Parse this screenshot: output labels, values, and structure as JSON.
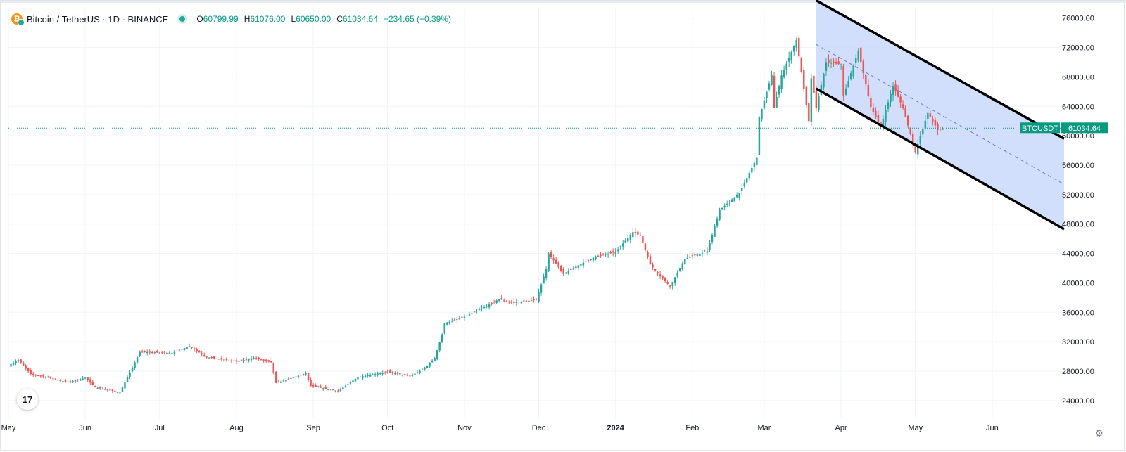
{
  "header": {
    "symbol": "Bitcoin / TetherUS · 1D · BINANCE",
    "open_label": "O",
    "open": "60799.99",
    "high_label": "H",
    "high": "61076.00",
    "low_label": "L",
    "low": "60650.00",
    "close_label": "C",
    "close": "61034.64",
    "change": "+234.65 (+0.39%)"
  },
  "price_tag": {
    "symbol": "BTCUSDT",
    "value": "61034.64"
  },
  "tv_logo_text": "17",
  "colors": {
    "up": "#26a69a",
    "down": "#ef5350",
    "channel_fill": "#c7d7fb",
    "channel_line": "#000000"
  },
  "chart_data": {
    "type": "candlestick",
    "title": "Bitcoin / TetherUS · 1D · BINANCE",
    "y_ticks": [
      24000,
      28000,
      32000,
      36000,
      40000,
      44000,
      48000,
      52000,
      56000,
      60000,
      64000,
      68000,
      72000,
      76000
    ],
    "ylim": [
      21500,
      77500
    ],
    "x_start_date": "2023-05-01",
    "xlim": [
      "2023-05-01",
      "2024-06-30"
    ],
    "x_labels": [
      {
        "date": "2023-05-01",
        "label": "May"
      },
      {
        "date": "2023-06-01",
        "label": "Jun"
      },
      {
        "date": "2023-07-01",
        "label": "Jul"
      },
      {
        "date": "2023-08-01",
        "label": "Aug"
      },
      {
        "date": "2023-09-01",
        "label": "Sep"
      },
      {
        "date": "2023-10-01",
        "label": "Oct"
      },
      {
        "date": "2023-11-01",
        "label": "Nov"
      },
      {
        "date": "2023-12-01",
        "label": "Dec"
      },
      {
        "date": "2024-01-01",
        "label": "2024"
      },
      {
        "date": "2024-02-01",
        "label": "Feb"
      },
      {
        "date": "2024-03-01",
        "label": "Mar"
      },
      {
        "date": "2024-04-01",
        "label": "Apr"
      },
      {
        "date": "2024-05-01",
        "label": "May"
      },
      {
        "date": "2024-06-01",
        "label": "Jun"
      }
    ],
    "close_path": [
      [
        "2023-05-01",
        28800
      ],
      [
        "2023-05-05",
        29500
      ],
      [
        "2023-05-10",
        27600
      ],
      [
        "2023-05-15",
        27300
      ],
      [
        "2023-05-25",
        26500
      ],
      [
        "2023-06-01",
        27100
      ],
      [
        "2023-06-05",
        25800
      ],
      [
        "2023-06-15",
        25100
      ],
      [
        "2023-06-20",
        28500
      ],
      [
        "2023-06-23",
        30600
      ],
      [
        "2023-07-06",
        30500
      ],
      [
        "2023-07-13",
        31400
      ],
      [
        "2023-07-20",
        29900
      ],
      [
        "2023-08-01",
        29300
      ],
      [
        "2023-08-08",
        29800
      ],
      [
        "2023-08-15",
        29200
      ],
      [
        "2023-08-17",
        26400
      ],
      [
        "2023-08-29",
        27700
      ],
      [
        "2023-08-31",
        26000
      ],
      [
        "2023-09-11",
        25300
      ],
      [
        "2023-09-19",
        27200
      ],
      [
        "2023-10-01",
        27900
      ],
      [
        "2023-10-10",
        27300
      ],
      [
        "2023-10-16",
        28400
      ],
      [
        "2023-10-20",
        29800
      ],
      [
        "2023-10-23",
        33000
      ],
      [
        "2023-10-24",
        34500
      ],
      [
        "2023-11-01",
        35400
      ],
      [
        "2023-11-09",
        36700
      ],
      [
        "2023-11-15",
        37800
      ],
      [
        "2023-11-20",
        37300
      ],
      [
        "2023-11-30",
        37700
      ],
      [
        "2023-12-04",
        41900
      ],
      [
        "2023-12-05",
        44000
      ],
      [
        "2023-12-11",
        41200
      ],
      [
        "2023-12-18",
        42600
      ],
      [
        "2023-12-24",
        43600
      ],
      [
        "2024-01-01",
        44200
      ],
      [
        "2024-01-08",
        46900
      ],
      [
        "2024-01-11",
        46400
      ],
      [
        "2024-01-15",
        42500
      ],
      [
        "2024-01-18",
        41300
      ],
      [
        "2024-01-23",
        39500
      ],
      [
        "2024-01-29",
        43300
      ],
      [
        "2024-02-07",
        44300
      ],
      [
        "2024-02-12",
        49900
      ],
      [
        "2024-02-20",
        52200
      ],
      [
        "2024-02-27",
        57000
      ],
      [
        "2024-02-28",
        62500
      ],
      [
        "2024-03-04",
        68300
      ],
      [
        "2024-03-05",
        63800
      ],
      [
        "2024-03-08",
        68200
      ],
      [
        "2024-03-14",
        73000
      ],
      [
        "2024-03-19",
        62000
      ],
      [
        "2024-03-20",
        67800
      ],
      [
        "2024-03-22",
        63800
      ],
      [
        "2024-03-26",
        70000
      ],
      [
        "2024-04-01",
        69700
      ],
      [
        "2024-04-02",
        65400
      ],
      [
        "2024-04-08",
        71600
      ],
      [
        "2024-04-13",
        63900
      ],
      [
        "2024-04-17",
        61200
      ],
      [
        "2024-04-22",
        66800
      ],
      [
        "2024-04-26",
        63800
      ],
      [
        "2024-05-01",
        57800
      ],
      [
        "2024-05-06",
        63100
      ],
      [
        "2024-05-10",
        60800
      ],
      [
        "2024-05-12",
        61034.64
      ]
    ],
    "channel": {
      "upper": [
        [
          "2024-03-22",
          78400
        ],
        [
          "2024-06-30",
          59600
        ]
      ],
      "lower": [
        [
          "2024-03-22",
          66400
        ],
        [
          "2024-06-30",
          47300
        ]
      ],
      "mid": [
        [
          "2024-03-22",
          72400
        ],
        [
          "2024-06-30",
          53400
        ]
      ]
    },
    "last_price": 61034.64
  }
}
